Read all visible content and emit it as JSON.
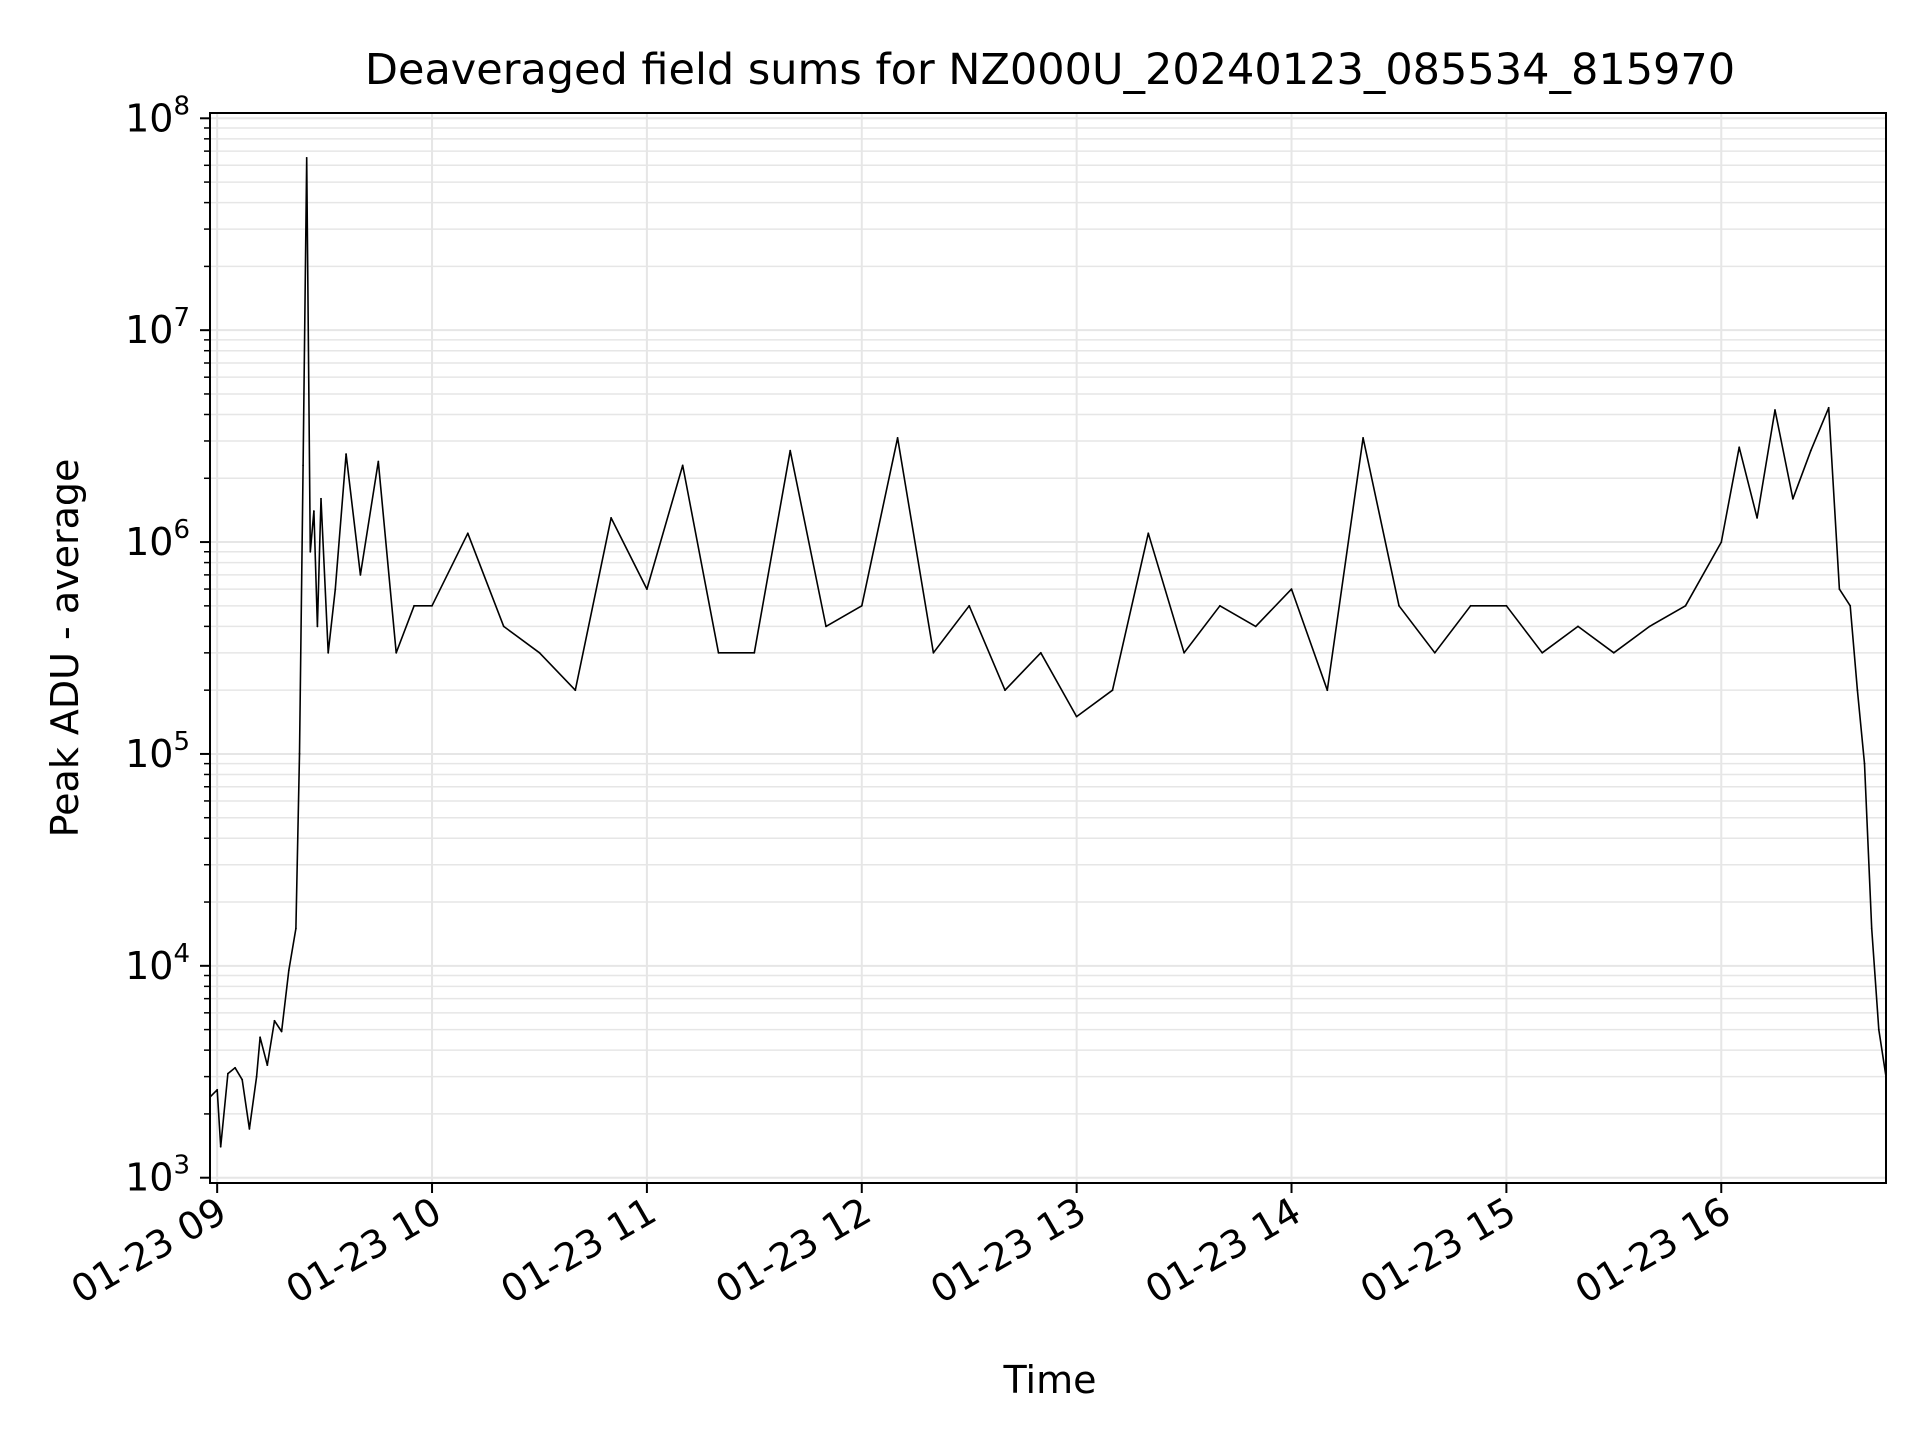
{
  "chart_data": {
    "type": "line",
    "title": "Deaveraged field sums for NZ000U_20240123_085534_815970",
    "xlabel": "Time",
    "ylabel": "Peak ADU - average",
    "yscale": "log",
    "ylim": [
      1000,
      100000000
    ],
    "xlim": [
      "2024-01-23 08:58",
      "2024-01-23 16:46"
    ],
    "x_ticks": [
      {
        "label": "01-23 09",
        "x": "2024-01-23 09:00"
      },
      {
        "label": "01-23 10",
        "x": "2024-01-23 10:00"
      },
      {
        "label": "01-23 11",
        "x": "2024-01-23 11:00"
      },
      {
        "label": "01-23 12",
        "x": "2024-01-23 12:00"
      },
      {
        "label": "01-23 13",
        "x": "2024-01-23 13:00"
      },
      {
        "label": "01-23 14",
        "x": "2024-01-23 14:00"
      },
      {
        "label": "01-23 15",
        "x": "2024-01-23 15:00"
      },
      {
        "label": "01-23 16",
        "x": "2024-01-23 16:00"
      }
    ],
    "y_ticks": [
      {
        "mantissa": "10",
        "exp": "3",
        "value": 1000
      },
      {
        "mantissa": "10",
        "exp": "4",
        "value": 10000
      },
      {
        "mantissa": "10",
        "exp": "5",
        "value": 100000
      },
      {
        "mantissa": "10",
        "exp": "6",
        "value": 1000000
      },
      {
        "mantissa": "10",
        "exp": "7",
        "value": 10000000
      },
      {
        "mantissa": "10",
        "exp": "8",
        "value": 100000000
      }
    ],
    "grid": true,
    "line_color": "#000000",
    "grid_color": "#e6e6e6",
    "series": [
      {
        "x": [
          "2024-01-23 08:58",
          "2024-01-23 09:00",
          "2024-01-23 09:01",
          "2024-01-23 09:03",
          "2024-01-23 09:05",
          "2024-01-23 09:07",
          "2024-01-23 09:09",
          "2024-01-23 09:11",
          "2024-01-23 09:12",
          "2024-01-23 09:14",
          "2024-01-23 09:16",
          "2024-01-23 09:18",
          "2024-01-23 09:20",
          "2024-01-23 09:22",
          "2024-01-23 09:23",
          "2024-01-23 09:24",
          "2024-01-23 09:25",
          "2024-01-23 09:26",
          "2024-01-23 09:27",
          "2024-01-23 09:28",
          "2024-01-23 09:29",
          "2024-01-23 09:31",
          "2024-01-23 09:33",
          "2024-01-23 09:36",
          "2024-01-23 09:40",
          "2024-01-23 09:45",
          "2024-01-23 09:50",
          "2024-01-23 09:55",
          "2024-01-23 10:00",
          "2024-01-23 10:10",
          "2024-01-23 10:20",
          "2024-01-23 10:30",
          "2024-01-23 10:40",
          "2024-01-23 10:50",
          "2024-01-23 11:00",
          "2024-01-23 11:10",
          "2024-01-23 11:20",
          "2024-01-23 11:30",
          "2024-01-23 11:40",
          "2024-01-23 11:50",
          "2024-01-23 12:00",
          "2024-01-23 12:10",
          "2024-01-23 12:20",
          "2024-01-23 12:30",
          "2024-01-23 12:40",
          "2024-01-23 12:50",
          "2024-01-23 13:00",
          "2024-01-23 13:10",
          "2024-01-23 13:20",
          "2024-01-23 13:30",
          "2024-01-23 13:40",
          "2024-01-23 13:50",
          "2024-01-23 14:00",
          "2024-01-23 14:10",
          "2024-01-23 14:20",
          "2024-01-23 14:30",
          "2024-01-23 14:40",
          "2024-01-23 14:50",
          "2024-01-23 15:00",
          "2024-01-23 15:10",
          "2024-01-23 15:20",
          "2024-01-23 15:30",
          "2024-01-23 15:40",
          "2024-01-23 15:50",
          "2024-01-23 16:00",
          "2024-01-23 16:05",
          "2024-01-23 16:10",
          "2024-01-23 16:15",
          "2024-01-23 16:20",
          "2024-01-23 16:25",
          "2024-01-23 16:30",
          "2024-01-23 16:33",
          "2024-01-23 16:36",
          "2024-01-23 16:38",
          "2024-01-23 16:40",
          "2024-01-23 16:42",
          "2024-01-23 16:44",
          "2024-01-23 16:46"
        ],
        "y": [
          2400,
          2600,
          1400,
          3100,
          3300,
          2900,
          1700,
          3000,
          4600,
          3400,
          5500,
          4900,
          9500,
          15000,
          100000,
          2300000,
          65000000,
          900000,
          1400000,
          400000,
          1600000,
          300000,
          600000,
          2600000,
          700000,
          2400000,
          300000,
          500000,
          500000,
          1100000,
          400000,
          300000,
          200000,
          1300000,
          600000,
          2300000,
          300000,
          300000,
          2700000,
          400000,
          500000,
          3100000,
          300000,
          500000,
          200000,
          300000,
          150000,
          200000,
          1100000,
          300000,
          500000,
          400000,
          600000,
          200000,
          3100000,
          500000,
          300000,
          500000,
          500000,
          300000,
          400000,
          300000,
          400000,
          500000,
          1000000,
          2800000,
          1300000,
          4200000,
          1600000,
          2700000,
          4300000,
          600000,
          500000,
          200000,
          90000,
          15000,
          5000,
          3000
        ]
      }
    ]
  }
}
